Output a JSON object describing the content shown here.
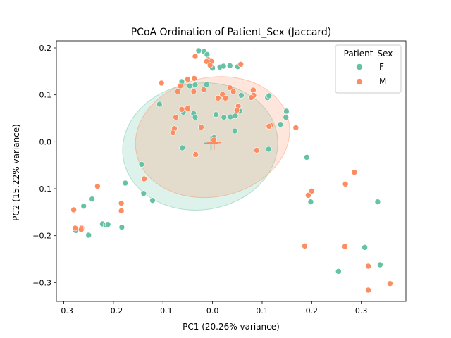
{
  "chart_data": {
    "type": "scatter",
    "title": "PCoA Ordination of Patient_Sex (Jaccard)",
    "xlabel": "PC1 (20.26% variance)",
    "ylabel": "PC2 (15.22% variance)",
    "xlim": [
      -0.315,
      0.39
    ],
    "ylim": [
      -0.34,
      0.215
    ],
    "xticks": [
      -0.3,
      -0.2,
      -0.1,
      0.0,
      0.1,
      0.2,
      0.3
    ],
    "xtick_labels": [
      "−0.3",
      "−0.2",
      "−0.1",
      "0.0",
      "0.1",
      "0.2",
      "0.3"
    ],
    "yticks": [
      -0.3,
      -0.2,
      -0.1,
      0.0,
      0.1,
      0.2
    ],
    "ytick_labels": [
      "−0.3",
      "−0.2",
      "−0.1",
      "0.0",
      "0.1",
      "0.2"
    ],
    "grid": false,
    "legend": {
      "title": "Patient_Sex",
      "placement": "top-right"
    },
    "series": [
      {
        "name": "F",
        "color": "#66c2a5",
        "centroid": [
          -0.003,
          -0.003
        ],
        "ellipse": {
          "cx": -0.025,
          "cy": -0.01,
          "rx": 0.157,
          "ry": 0.135,
          "angle_deg": -8
        },
        "points": [
          [
            -0.028,
            0.194
          ],
          [
            -0.017,
            0.192
          ],
          [
            -0.011,
            0.186
          ],
          [
            -0.005,
            0.167
          ],
          [
            0.0,
            0.157
          ],
          [
            0.015,
            0.159
          ],
          [
            0.022,
            0.161
          ],
          [
            0.035,
            0.162
          ],
          [
            0.051,
            0.16
          ],
          [
            -0.062,
            0.128
          ],
          [
            -0.046,
            0.119
          ],
          [
            -0.035,
            0.121
          ],
          [
            -0.012,
            0.122
          ],
          [
            -0.107,
            0.08
          ],
          [
            0.058,
            0.099
          ],
          [
            0.111,
            0.094
          ],
          [
            0.114,
            0.098
          ],
          [
            -0.059,
            0.063
          ],
          [
            -0.038,
            0.06
          ],
          [
            -0.035,
            0.052
          ],
          [
            0.007,
            0.058
          ],
          [
            0.023,
            0.052
          ],
          [
            0.036,
            0.053
          ],
          [
            0.046,
            0.055
          ],
          [
            0.055,
            0.065
          ],
          [
            0.149,
            0.065
          ],
          [
            0.148,
            0.052
          ],
          [
            0.137,
            0.037
          ],
          [
            0.045,
            0.023
          ],
          [
            0.003,
            0.009
          ],
          [
            -0.061,
            -0.013
          ],
          [
            0.113,
            -0.016
          ],
          [
            0.19,
            -0.033
          ],
          [
            -0.143,
            -0.048
          ],
          [
            -0.176,
            -0.088
          ],
          [
            -0.139,
            -0.11
          ],
          [
            -0.121,
            -0.125
          ],
          [
            -0.243,
            -0.122
          ],
          [
            -0.26,
            -0.137
          ],
          [
            0.198,
            -0.128
          ],
          [
            0.333,
            -0.128
          ],
          [
            -0.222,
            -0.175
          ],
          [
            -0.215,
            -0.177
          ],
          [
            -0.211,
            -0.176
          ],
          [
            -0.183,
            -0.182
          ],
          [
            -0.276,
            -0.189
          ],
          [
            -0.25,
            -0.199
          ],
          [
            0.307,
            -0.225
          ],
          [
            0.338,
            -0.262
          ],
          [
            0.254,
            -0.276
          ]
        ]
      },
      {
        "name": "M",
        "color": "#fc8d62",
        "centroid": [
          0.003,
          -0.002
        ],
        "ellipse": {
          "cx": 0.0,
          "cy": 0.01,
          "rx": 0.157,
          "ry": 0.127,
          "angle_deg": -12
        },
        "points": [
          [
            -0.009,
            0.175
          ],
          [
            -0.012,
            0.171
          ],
          [
            -0.002,
            0.171
          ],
          [
            -0.005,
            0.163
          ],
          [
            -0.035,
            0.182
          ],
          [
            0.057,
            0.165
          ],
          [
            -0.103,
            0.125
          ],
          [
            -0.05,
            0.133
          ],
          [
            -0.037,
            0.135
          ],
          [
            -0.065,
            0.119
          ],
          [
            -0.018,
            0.111
          ],
          [
            0.035,
            0.115
          ],
          [
            -0.07,
            0.107
          ],
          [
            -0.038,
            0.107
          ],
          [
            0.042,
            0.107
          ],
          [
            0.082,
            0.11
          ],
          [
            0.02,
            0.101
          ],
          [
            0.011,
            0.093
          ],
          [
            0.026,
            0.093
          ],
          [
            0.083,
            0.099
          ],
          [
            0.078,
            0.094
          ],
          [
            -0.062,
            0.069
          ],
          [
            -0.05,
            0.071
          ],
          [
            -0.074,
            0.052
          ],
          [
            0.052,
            0.076
          ],
          [
            0.049,
            0.067
          ],
          [
            0.117,
            0.035
          ],
          [
            0.114,
            0.033
          ],
          [
            0.168,
            0.03
          ],
          [
            -0.077,
            0.028
          ],
          [
            -0.08,
            0.019
          ],
          [
            -0.023,
            0.031
          ],
          [
            -0.034,
            -0.027
          ],
          [
            0.003,
            0.004
          ],
          [
            0.089,
            -0.018
          ],
          [
            0.286,
            -0.065
          ],
          [
            0.268,
            -0.09
          ],
          [
            -0.232,
            -0.095
          ],
          [
            -0.138,
            -0.079
          ],
          [
            0.2,
            -0.105
          ],
          [
            0.193,
            -0.114
          ],
          [
            -0.184,
            -0.131
          ],
          [
            -0.184,
            -0.147
          ],
          [
            -0.28,
            -0.145
          ],
          [
            -0.277,
            -0.184
          ],
          [
            -0.264,
            -0.184
          ],
          [
            -0.265,
            -0.187
          ],
          [
            0.186,
            -0.222
          ],
          [
            0.267,
            -0.223
          ],
          [
            0.314,
            -0.265
          ],
          [
            0.358,
            -0.302
          ],
          [
            0.314,
            -0.316
          ]
        ]
      }
    ]
  }
}
